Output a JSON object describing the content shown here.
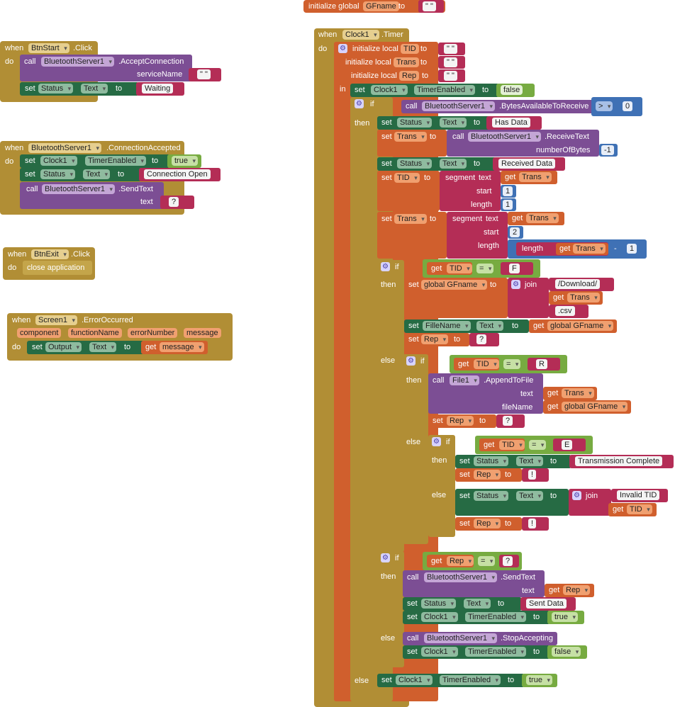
{
  "colors": {
    "event": "#b18e35",
    "variable": "#d05f2d",
    "setter": "#266b44",
    "procedure": "#7c4e94",
    "text": "#b42d56",
    "logic": "#77ab41",
    "math": "#3f71b5"
  },
  "global_init": {
    "kw": "initialize global",
    "name": "GFname",
    "to": "to",
    "value": "\" \""
  },
  "btnstart": {
    "when": "when",
    "component": "BtnStart",
    "event": ".Click",
    "do": "do",
    "call": "call",
    "server": "BluetoothServer1",
    "method": ".AcceptConnection",
    "param": "serviceName",
    "param_val": "\" \"",
    "set": "set",
    "target": "Status",
    "prop": "Text",
    "to": "to",
    "value": "Waiting"
  },
  "connaccepted": {
    "when": "when",
    "component": "BluetoothServer1",
    "event": ".ConnectionAccepted",
    "do": "do",
    "set": "set",
    "clock": "Clock1",
    "prop1": "TimerEnabled",
    "to": "to",
    "val1": "true",
    "status": "Status",
    "prop2": "Text",
    "val2": "Connection Open",
    "call": "call",
    "server": "BluetoothServer1",
    "method": ".SendText",
    "param": "text",
    "param_val": "?"
  },
  "btnexit": {
    "when": "when",
    "component": "BtnExit",
    "event": ".Click",
    "do": "do",
    "action": "close application"
  },
  "screen": {
    "when": "when",
    "component": "Screen1",
    "event": ".ErrorOccurred",
    "params": [
      "component",
      "functionName",
      "errorNumber",
      "message"
    ],
    "do": "do",
    "set": "set",
    "target": "Output",
    "prop": "Text",
    "to": "to",
    "get": "get",
    "getvar": "message"
  },
  "timer": {
    "when": "when",
    "component": "Clock1",
    "event": ".Timer",
    "do": "do",
    "init_local": "initialize local",
    "init_local2": "initialize local",
    "init_local3": "initialize local",
    "locals": [
      "TID",
      "Trans",
      "Rep"
    ],
    "to": "to",
    "empty": "\" \"",
    "in": "in",
    "set": "set",
    "clock": "Clock1",
    "timer_prop": "TimerEnabled",
    "false_val": "false",
    "true_val": "true",
    "if": "if",
    "then": "then",
    "else": "else",
    "call": "call",
    "get": "get",
    "server": "BluetoothServer1",
    "bytes": ".BytesAvailableToReceive",
    "gt": ">",
    "zero": "0",
    "status": "Status",
    "text_prop": "Text",
    "has_data": "Has Data",
    "trans": "Trans",
    "receive": ".ReceiveText",
    "numbytes": "numberOfBytes",
    "neg1": "-1",
    "received": "Received Data",
    "tid": "TID",
    "segment": "segment",
    "text_kw": "text",
    "start_kw": "start",
    "length_kw": "length",
    "one": "1",
    "two": "2",
    "minus": "-",
    "eq": "=",
    "F": "F",
    "R": "R",
    "E": "E",
    "q": "?",
    "bang": "!",
    "global_gf": "global GFname",
    "join": "join",
    "download": "/Download/",
    "csv": ".csv",
    "filename": "FilleName",
    "rep": "Rep",
    "file": "File1",
    "append": ".AppendToFile",
    "filename_param": "fileName",
    "trans_complete": "Transmission Complete",
    "invalid": "Invalid TID ",
    "sendtext": ".SendText",
    "sent": "Sent Data",
    "stop": ".StopAccepting"
  }
}
